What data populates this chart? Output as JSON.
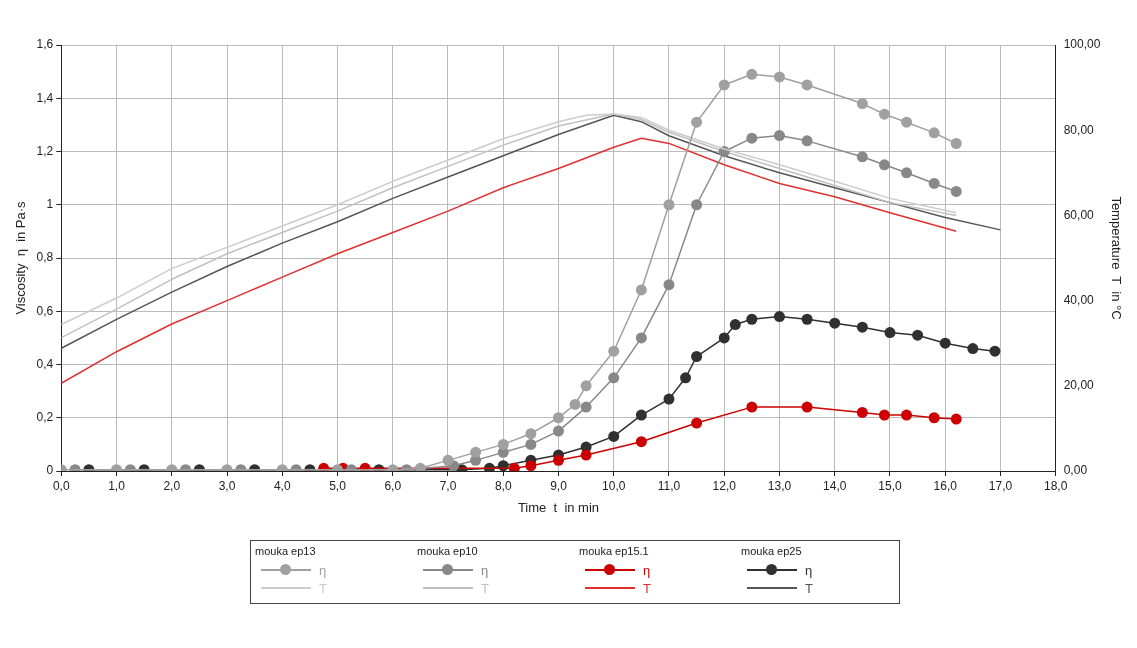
{
  "chart_data": {
    "type": "line",
    "xlabel": "Time  t  in min",
    "ylabel": "Viscosity  η  in Pa·s",
    "y2label": "Temperature  T  in °C",
    "annotations": [
      "mouka ep13",
      "mouka ep10",
      "mouka ep15.1",
      "mouka ep25"
    ],
    "xlim": [
      0,
      18
    ],
    "xticks": [
      {
        "value": 0,
        "label": "0,0"
      },
      {
        "value": 1,
        "label": "1,0"
      },
      {
        "value": 2,
        "label": "2,0"
      },
      {
        "value": 3,
        "label": "3,0"
      },
      {
        "value": 4,
        "label": "4,0"
      },
      {
        "value": 5,
        "label": "5,0"
      },
      {
        "value": 6,
        "label": "6,0"
      },
      {
        "value": 7,
        "label": "7,0"
      },
      {
        "value": 8,
        "label": "8,0"
      },
      {
        "value": 9,
        "label": "9,0"
      },
      {
        "value": 10,
        "label": "10,0"
      },
      {
        "value": 11,
        "label": "11,0"
      },
      {
        "value": 12,
        "label": "12,0"
      },
      {
        "value": 13,
        "label": "13,0"
      },
      {
        "value": 14,
        "label": "14,0"
      },
      {
        "value": 15,
        "label": "15,0"
      },
      {
        "value": 16,
        "label": "16,0"
      },
      {
        "value": 17,
        "label": "17,0"
      },
      {
        "value": 18,
        "label": "18,0"
      }
    ],
    "ylim": [
      0,
      1.6
    ],
    "yticks": [
      0,
      {
        "value": 0.2,
        "label": "0,2"
      },
      {
        "value": 0.4,
        "label": "0,4"
      },
      {
        "value": 0.6,
        "label": "0,6"
      },
      {
        "value": 0.8,
        "label": "0,8"
      },
      1,
      {
        "value": 1.2,
        "label": "1,2"
      },
      {
        "value": 1.4,
        "label": "1,4"
      },
      {
        "value": 1.6,
        "label": "1,6"
      }
    ],
    "y2lim": [
      0,
      100
    ],
    "y2ticks": [
      {
        "value": 0,
        "label": "0,00"
      },
      {
        "value": 20,
        "label": "20,00"
      },
      {
        "value": 40,
        "label": "40,00"
      },
      {
        "value": 60,
        "label": "60,00"
      },
      {
        "value": 80,
        "label": "80,00"
      },
      {
        "value": 100,
        "label": "100,00"
      }
    ],
    "grid": true,
    "legend": "bottom",
    "marker": "circle",
    "series": [
      {
        "name": "η",
        "color": "#a0a0a0",
        "x": [
          0,
          1,
          2,
          3,
          4,
          5,
          6,
          6.5,
          7,
          7.5,
          8,
          8.5,
          9,
          9.3,
          9.5,
          10,
          10.5,
          11,
          11.5,
          12,
          12.5,
          13,
          13.5,
          14.5,
          14.9,
          15.3,
          15.8,
          16.2
        ],
        "values": [
          0.005,
          0.005,
          0.005,
          0.005,
          0.005,
          0.005,
          0.005,
          0.01,
          0.04,
          0.07,
          0.1,
          0.14,
          0.2,
          0.25,
          0.32,
          0.45,
          0.68,
          1.0,
          1.31,
          1.45,
          1.49,
          1.48,
          1.45,
          1.38,
          1.34,
          1.31,
          1.27,
          1.23
        ]
      },
      {
        "name": "T",
        "color": "#cccccc",
        "axis": "y2",
        "marker": "none",
        "x": [
          0,
          1,
          2,
          3,
          4,
          5,
          6,
          7,
          8,
          9,
          9.5,
          10,
          10.5,
          11,
          12,
          13,
          14,
          15,
          16.2
        ],
        "values": [
          34.4,
          40.6,
          47.5,
          52.5,
          57.5,
          62.5,
          68,
          73,
          78,
          82,
          83.5,
          83.8,
          83,
          80,
          75.6,
          71.9,
          68,
          64,
          60.6
        ]
      },
      {
        "name": "η",
        "color": "#888888",
        "x": [
          0.25,
          1.25,
          2.25,
          3.25,
          4.25,
          5.25,
          6.25,
          7.1,
          7.5,
          8,
          8.5,
          9,
          9.5,
          10,
          10.5,
          11,
          11.5,
          12,
          12.5,
          13,
          13.5,
          14.5,
          14.9,
          15.3,
          15.8,
          16.2
        ],
        "values": [
          0.005,
          0.005,
          0.005,
          0.005,
          0.005,
          0.005,
          0.005,
          0.02,
          0.04,
          0.07,
          0.1,
          0.15,
          0.24,
          0.35,
          0.5,
          0.7,
          1.0,
          1.2,
          1.25,
          1.26,
          1.24,
          1.18,
          1.15,
          1.12,
          1.08,
          1.05
        ]
      },
      {
        "name": "T",
        "color": "#c0c0c0",
        "axis": "y2",
        "marker": "none",
        "x": [
          0,
          1,
          2,
          3,
          4,
          5,
          6,
          7,
          8,
          9,
          10,
          10.5,
          11,
          12,
          13,
          14,
          15,
          16.2
        ],
        "values": [
          31.3,
          38,
          45,
          51,
          56,
          61,
          66.5,
          71.5,
          76.5,
          81,
          83.8,
          82.5,
          79.5,
          75,
          71,
          67,
          63,
          60
        ]
      },
      {
        "name": "η",
        "color": "#cc0000",
        "x": [
          4.75,
          5.1,
          5.5,
          8.2,
          8.5,
          9,
          9.5,
          10.5,
          11.5,
          12.5,
          13.5,
          14.5,
          14.9,
          15.3,
          15.8,
          16.2
        ],
        "values": [
          0.01,
          0.01,
          0.01,
          0.01,
          0.02,
          0.04,
          0.06,
          0.11,
          0.18,
          0.24,
          0.24,
          0.22,
          0.21,
          0.21,
          0.2,
          0.195
        ]
      },
      {
        "name": "T",
        "color": "#e03030",
        "axis": "y2",
        "marker": "none",
        "x": [
          0,
          1,
          2,
          3,
          4,
          5,
          6,
          7,
          8,
          9,
          10,
          10.5,
          11,
          12,
          13,
          14,
          15,
          16.2
        ],
        "values": [
          20.6,
          28,
          34.5,
          40,
          45.5,
          51,
          56,
          61,
          66.5,
          71,
          76,
          78.1,
          76.9,
          71.9,
          67.5,
          64.4,
          60.6,
          56.3
        ]
      },
      {
        "name": "η",
        "color": "#303030",
        "x": [
          0.5,
          1.5,
          2.5,
          3.5,
          4.5,
          5.75,
          6.5,
          7.25,
          7.75,
          8,
          8.5,
          9,
          9.5,
          10,
          10.5,
          11,
          11.3,
          11.5,
          12,
          12.2,
          12.5,
          13,
          13.5,
          14,
          14.5,
          15,
          15.5,
          16,
          16.5,
          16.9
        ],
        "values": [
          0.005,
          0.005,
          0.005,
          0.005,
          0.005,
          0.005,
          0.005,
          0.005,
          0.01,
          0.02,
          0.04,
          0.06,
          0.09,
          0.13,
          0.21,
          0.27,
          0.35,
          0.43,
          0.5,
          0.55,
          0.57,
          0.58,
          0.57,
          0.555,
          0.54,
          0.52,
          0.51,
          0.48,
          0.46,
          0.45
        ]
      },
      {
        "name": "T",
        "color": "#555555",
        "axis": "y2",
        "marker": "none",
        "x": [
          0,
          1,
          2,
          3,
          4,
          5,
          6,
          7,
          8,
          9,
          10,
          10.5,
          11,
          12,
          13,
          14,
          15,
          16,
          17
        ],
        "values": [
          28.8,
          35.6,
          42,
          48,
          53.5,
          58.5,
          64,
          69,
          74,
          79,
          83.5,
          82,
          78.7,
          74,
          70,
          66.5,
          63,
          59.5,
          56.6
        ]
      }
    ]
  }
}
